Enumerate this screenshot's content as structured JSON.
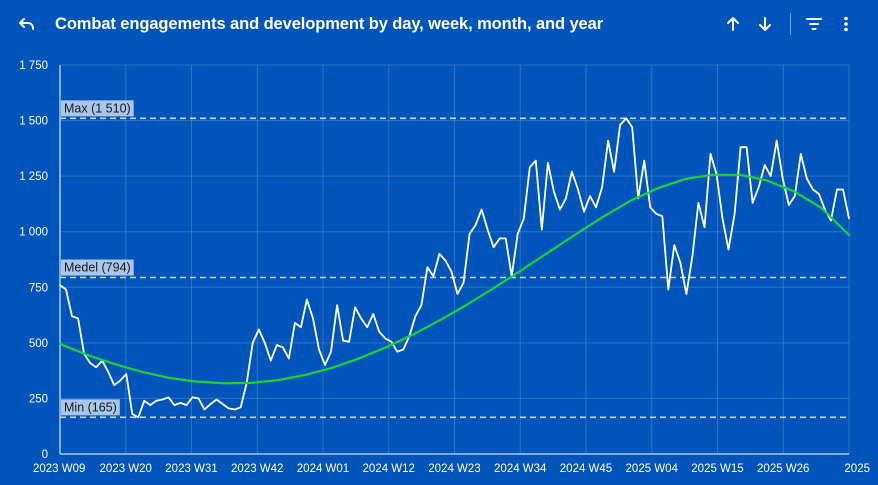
{
  "header": {
    "title": "Combat engagements and development by day, week, month, and year",
    "back_icon": "undo-arrow-icon",
    "sort_up_icon": "arrow-up-icon",
    "sort_down_icon": "arrow-down-icon",
    "filter_icon": "filter-lines-icon",
    "menu_icon": "more-vertical-icon"
  },
  "colors": {
    "background": "#0154b9",
    "data_line": "#ffffff",
    "trend_line": "#18d634",
    "reference_line": "#c8d8f0",
    "label_bg": "#a9c7ec"
  },
  "chart_data": {
    "type": "line",
    "x_tick_labels": [
      "2023 W09",
      "2023 W20",
      "2023 W31",
      "2023 W42",
      "2024 W01",
      "2024 W12",
      "2024 W23",
      "2024 W34",
      "2024 W45",
      "2025 W04",
      "2025 W15",
      "2025 W26",
      "2025"
    ],
    "y_tick_labels": [
      "0",
      "250",
      "500",
      "750",
      "1 000",
      "1 250",
      "1 500",
      "1 750"
    ],
    "ylim": [
      0,
      1750
    ],
    "x_range_weeks": [
      0,
      132
    ],
    "grid": true,
    "reference_lines": [
      {
        "label": "Max (1 510)",
        "value": 1510
      },
      {
        "label": "Medel (794)",
        "value": 794
      },
      {
        "label": "Min (165)",
        "value": 165
      }
    ],
    "series": [
      {
        "values": [
          760,
          740,
          620,
          610,
          450,
          410,
          390,
          420,
          370,
          310,
          330,
          360,
          180,
          165,
          240,
          220,
          240,
          245,
          255,
          220,
          230,
          220,
          255,
          250,
          200,
          225,
          245,
          225,
          205,
          200,
          210,
          320,
          500,
          560,
          500,
          420,
          490,
          480,
          430,
          590,
          570,
          695,
          610,
          470,
          400,
          460,
          670,
          510,
          505,
          660,
          610,
          570,
          630,
          550,
          520,
          505,
          460,
          470,
          530,
          620,
          670,
          840,
          800,
          900,
          870,
          820,
          720,
          770,
          990,
          1030,
          1100,
          1010,
          930,
          970,
          970,
          800,
          990,
          1060,
          1290,
          1320,
          1010,
          1310,
          1180,
          1100,
          1150,
          1270,
          1190,
          1090,
          1160,
          1110,
          1200,
          1410,
          1270,
          1480,
          1510,
          1470,
          1150,
          1320,
          1110,
          1080,
          1070,
          740,
          940,
          860,
          720,
          890,
          1130,
          1020,
          1350,
          1260,
          1060,
          920,
          1080,
          1380,
          1380,
          1130,
          1200,
          1300,
          1250,
          1410,
          1240,
          1120,
          1160,
          1350,
          1240,
          1190,
          1170,
          1100,
          1050,
          1190,
          1190,
          1060
        ]
      },
      {
        "trend": true,
        "values": [
          495,
          446,
          405,
          370,
          343,
          326,
          318,
          320,
          332,
          355,
          388,
          430,
          481,
          539,
          604,
          675,
          751,
          830,
          911,
          992,
          1070,
          1141,
          1197,
          1238,
          1256,
          1256,
          1230,
          1180,
          1106,
          985
        ]
      }
    ]
  }
}
